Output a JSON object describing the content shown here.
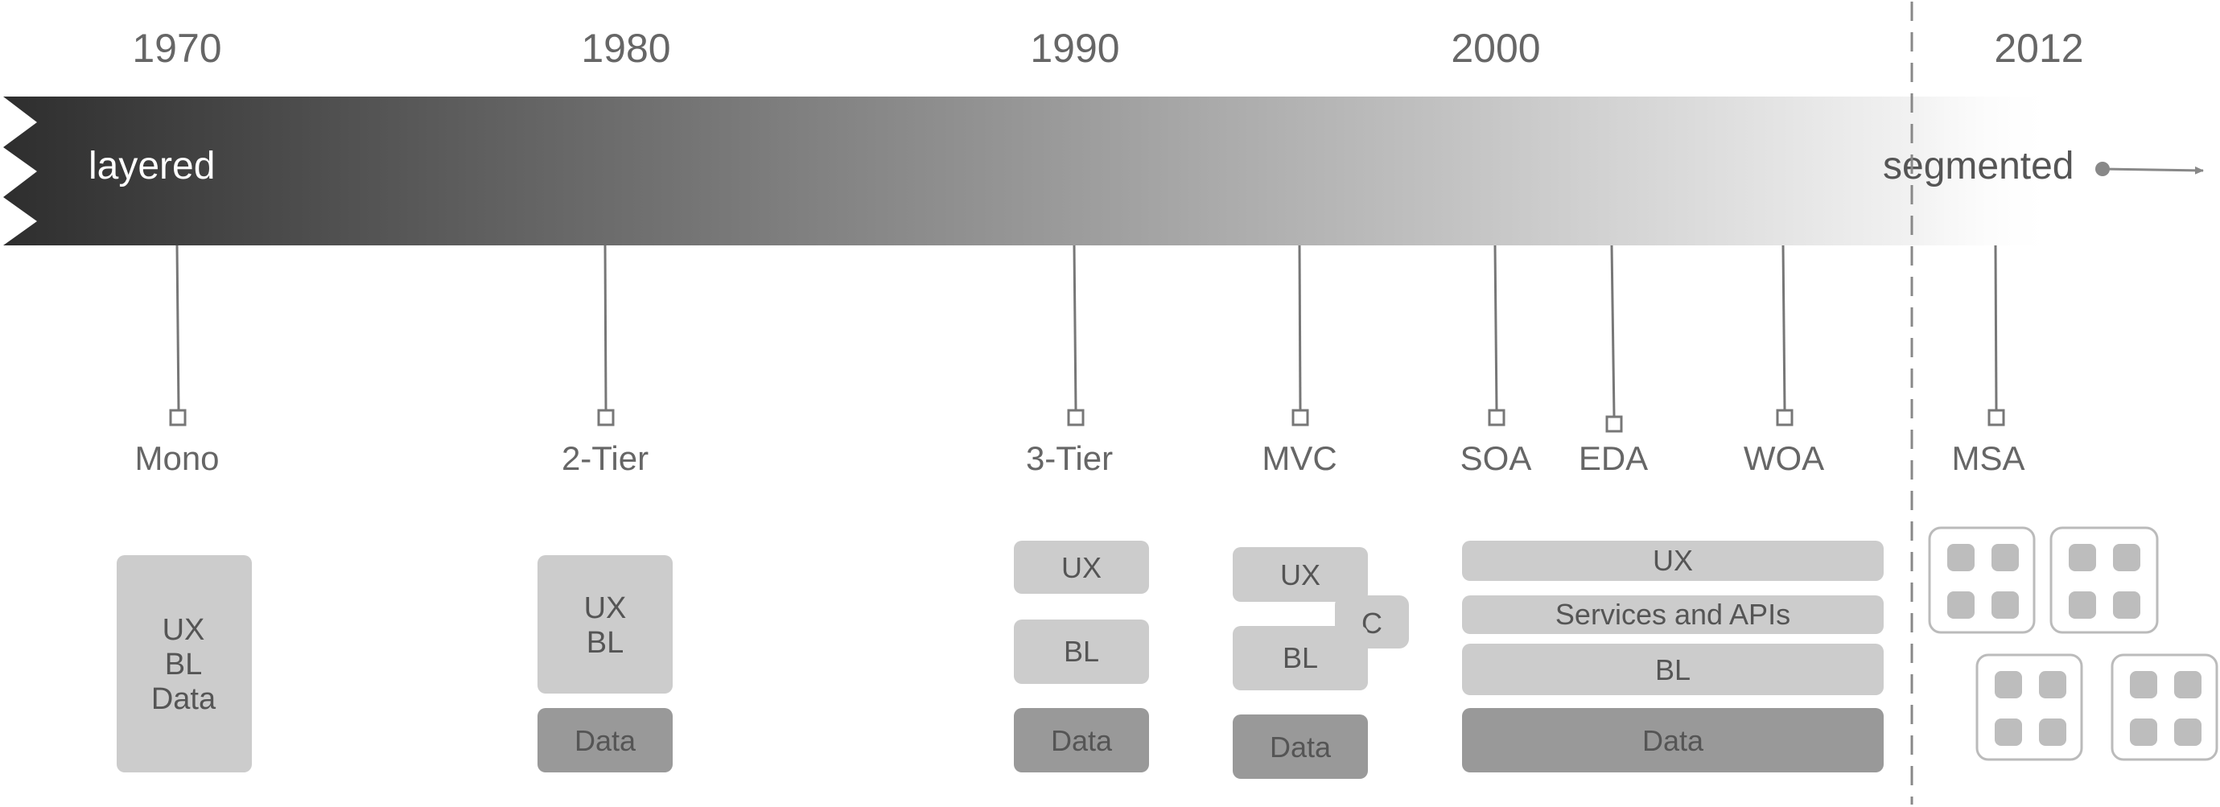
{
  "years": [
    "1970",
    "1980",
    "1990",
    "2000",
    "2012"
  ],
  "band": {
    "left_label": "layered",
    "right_label": "segmented",
    "gradient_dark": "#2e2e2e",
    "gradient_light": "#f2f2f2"
  },
  "milestones": [
    "Mono",
    "2-Tier",
    "3-Tier",
    "MVC",
    "SOA",
    "EDA",
    "WOA",
    "MSA"
  ],
  "architectures": {
    "mono": {
      "label": "UX\nBL\nData",
      "lines": [
        "UX",
        "BL",
        "Data"
      ]
    },
    "two_tier": {
      "top_lines": [
        "UX",
        "BL"
      ],
      "data": "Data"
    },
    "three_tier": {
      "ux": "UX",
      "bl": "BL",
      "data": "Data"
    },
    "mvc": {
      "ux": "UX",
      "c": "C",
      "bl": "BL",
      "data": "Data"
    },
    "soa": {
      "ux": "UX",
      "services": "Services and APIs",
      "bl": "BL",
      "data": "Data"
    }
  },
  "colors": {
    "light_box": "#cccccc",
    "dark_box": "#999999",
    "text": "#666666",
    "text_dark": "#555555",
    "line": "#777777",
    "divider": "#888888",
    "microservice_border": "#bbbbbb",
    "microservice_dot": "#bdbdbd"
  }
}
